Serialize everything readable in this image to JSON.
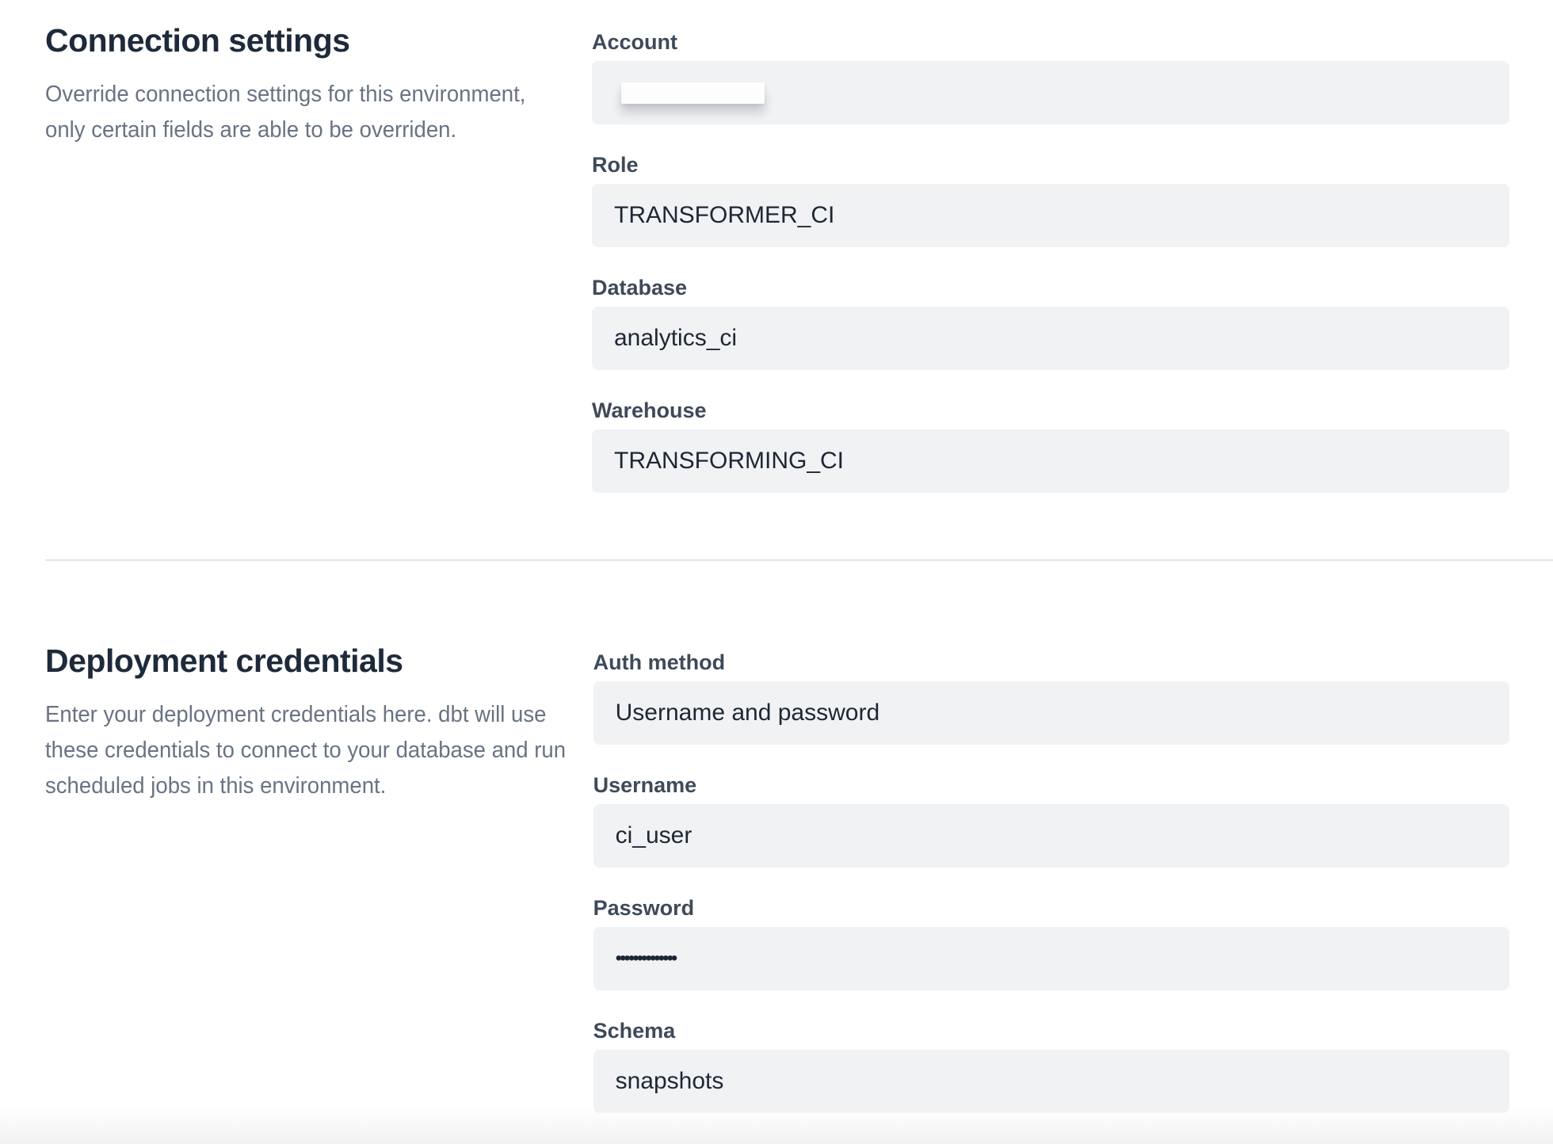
{
  "connection_settings": {
    "title": "Connection settings",
    "description": "Override connection settings for this environment,\nonly certain fields are able to be overriden.",
    "fields": {
      "account": {
        "label": "Account",
        "value": "",
        "redacted": true
      },
      "role": {
        "label": "Role",
        "value": "TRANSFORMER_CI"
      },
      "database": {
        "label": "Database",
        "value": "analytics_ci"
      },
      "warehouse": {
        "label": "Warehouse",
        "value": "TRANSFORMING_CI"
      }
    }
  },
  "deployment_credentials": {
    "title": "Deployment credentials",
    "description": "Enter your deployment credentials here. dbt will use\nthese credentials to connect to your database and run\nscheduled jobs in this environment.",
    "fields": {
      "auth_method": {
        "label": "Auth method",
        "value": "Username and password"
      },
      "username": {
        "label": "Username",
        "value": "ci_user"
      },
      "password": {
        "label": "Password",
        "value": "••••••••••••••"
      },
      "schema": {
        "label": "Schema",
        "value": "snapshots"
      }
    }
  },
  "colors": {
    "heading": "#1e2a3a",
    "label": "#3e4a59",
    "description": "#697383",
    "input_background": "#f1f2f4",
    "input_text": "#1d2735",
    "divider": "#e6e6e8"
  }
}
